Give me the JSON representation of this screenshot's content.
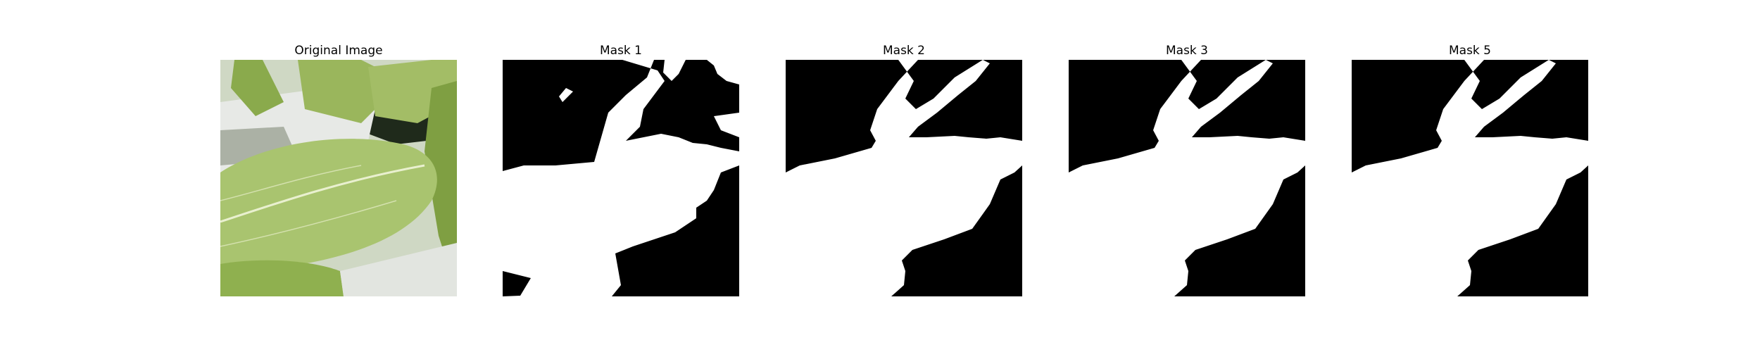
{
  "panels": [
    {
      "title": "Original Image",
      "kind": "photo"
    },
    {
      "title": "Mask 1",
      "kind": "mask"
    },
    {
      "title": "Mask 2",
      "kind": "mask"
    },
    {
      "title": "Mask 3",
      "kind": "mask"
    },
    {
      "title": "Mask 5",
      "kind": "mask"
    }
  ],
  "colors": {
    "mask_foreground": "#ffffff",
    "mask_background": "#000000",
    "leaf_light": "#a9c46f",
    "leaf_mid": "#8aaa4c",
    "leaf_dark": "#5f7f2f",
    "pot_white": "#e7e9e6",
    "shadow_dark": "#1f2a1b"
  }
}
